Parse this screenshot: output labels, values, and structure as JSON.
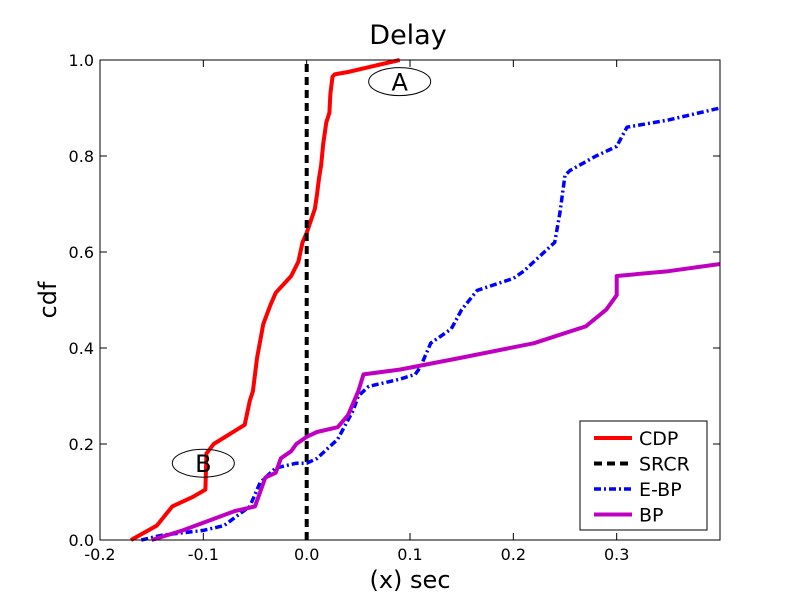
{
  "chart_data": {
    "type": "line",
    "title": "Delay",
    "xlabel": "(x) sec",
    "ylabel": "cdf",
    "xlim": [
      -0.2,
      0.4
    ],
    "ylim": [
      0.0,
      1.0
    ],
    "x_ticks": [
      -0.2,
      -0.1,
      0.0,
      0.1,
      0.2,
      0.3
    ],
    "x_tick_labels": [
      "-0.2",
      "-0.1",
      "0.0",
      "0.1",
      "0.2",
      "0.3"
    ],
    "y_ticks": [
      0.0,
      0.2,
      0.4,
      0.6,
      0.8,
      1.0
    ],
    "y_tick_labels": [
      "0.0",
      "0.2",
      "0.4",
      "0.6",
      "0.8",
      "1.0"
    ],
    "grid": false,
    "legend_position": "lower-right",
    "series": [
      {
        "name": "CDP",
        "color": "#ff0000",
        "style": "solid",
        "x": [
          -0.17,
          -0.145,
          -0.13,
          -0.11,
          -0.098,
          -0.097,
          -0.09,
          -0.06,
          -0.055,
          -0.052,
          -0.048,
          -0.042,
          -0.035,
          -0.03,
          -0.015,
          -0.008,
          -0.004,
          0.0,
          0.008,
          0.01,
          0.012,
          0.014,
          0.016,
          0.019,
          0.022,
          0.023,
          0.025,
          0.027,
          0.04,
          0.06,
          0.09
        ],
        "y": [
          0.0,
          0.03,
          0.07,
          0.09,
          0.105,
          0.18,
          0.2,
          0.24,
          0.29,
          0.31,
          0.38,
          0.45,
          0.49,
          0.515,
          0.55,
          0.58,
          0.62,
          0.64,
          0.69,
          0.72,
          0.755,
          0.78,
          0.825,
          0.87,
          0.89,
          0.93,
          0.965,
          0.97,
          0.975,
          0.985,
          1.0
        ]
      },
      {
        "name": "SRCR",
        "color": "#000000",
        "style": "dashed",
        "x": [
          0.0,
          0.0
        ],
        "y": [
          0.0,
          1.0
        ]
      },
      {
        "name": "E-BP",
        "color": "#0000ff",
        "style": "dashdot",
        "x": [
          -0.16,
          -0.14,
          -0.1,
          -0.08,
          -0.055,
          -0.045,
          -0.03,
          -0.01,
          0.0,
          0.01,
          0.03,
          0.045,
          0.05,
          0.06,
          0.09,
          0.105,
          0.11,
          0.12,
          0.14,
          0.15,
          0.165,
          0.2,
          0.21,
          0.235,
          0.24,
          0.245,
          0.25,
          0.255,
          0.28,
          0.3,
          0.305,
          0.31,
          0.35,
          0.4
        ],
        "y": [
          0.0,
          0.01,
          0.02,
          0.03,
          0.07,
          0.12,
          0.15,
          0.16,
          0.16,
          0.17,
          0.21,
          0.27,
          0.3,
          0.32,
          0.335,
          0.345,
          0.36,
          0.41,
          0.44,
          0.48,
          0.52,
          0.545,
          0.56,
          0.61,
          0.62,
          0.68,
          0.76,
          0.77,
          0.8,
          0.82,
          0.84,
          0.86,
          0.875,
          0.9
        ]
      },
      {
        "name": "BP",
        "color": "#c000c0",
        "style": "solid",
        "x": [
          -0.15,
          -0.12,
          -0.07,
          -0.05,
          -0.045,
          -0.04,
          -0.03,
          -0.025,
          -0.015,
          -0.01,
          0.0,
          0.01,
          0.03,
          0.04,
          0.05,
          0.055,
          0.09,
          0.15,
          0.22,
          0.27,
          0.29,
          0.3,
          0.3,
          0.35,
          0.4
        ],
        "y": [
          0.0,
          0.02,
          0.06,
          0.07,
          0.1,
          0.13,
          0.14,
          0.17,
          0.185,
          0.2,
          0.215,
          0.225,
          0.235,
          0.26,
          0.31,
          0.345,
          0.355,
          0.38,
          0.41,
          0.445,
          0.48,
          0.51,
          0.55,
          0.56,
          0.575
        ]
      }
    ],
    "annotations": [
      {
        "text": "A",
        "x": 0.09,
        "y": 0.955
      },
      {
        "text": "B",
        "x": -0.1,
        "y": 0.16
      }
    ]
  }
}
